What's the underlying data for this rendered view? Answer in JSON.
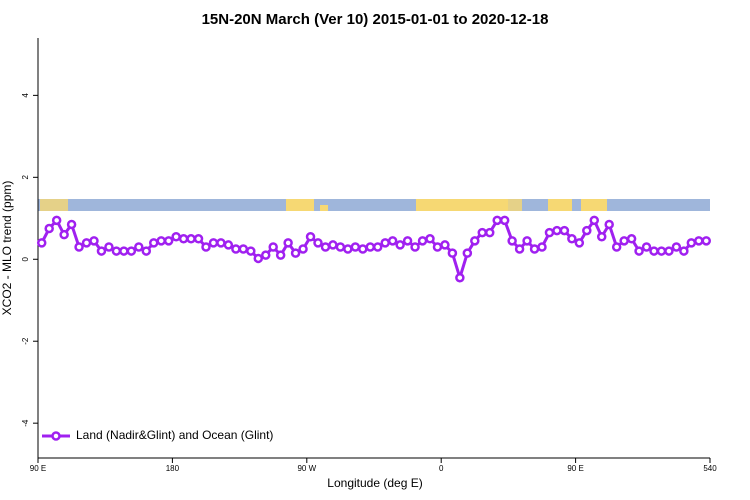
{
  "chart_data": {
    "type": "line",
    "title": "15N-20N March (Ver 10)   2015-01-01 to 2020-12-18",
    "xlabel": "Longitude (deg E)",
    "ylabel": "XCO2 - MLO trend (ppm)",
    "xlim": [
      90,
      540
    ],
    "ylim": [
      -4.85,
      5.4
    ],
    "xticks": [
      {
        "value": 90,
        "label": "90 E"
      },
      180,
      {
        "value": 270,
        "label": "90 W"
      },
      {
        "value": 360,
        "label": "0"
      },
      {
        "value": 450,
        "label": "90 E"
      },
      540
    ],
    "yticks": [
      -4,
      -2,
      0,
      2,
      4
    ],
    "legend": "bottom-left",
    "x": [
      92.5,
      97.5,
      102.5,
      107.5,
      112.5,
      117.5,
      122.5,
      127.5,
      132.5,
      137.5,
      142.5,
      147.5,
      152.5,
      157.5,
      162.5,
      167.5,
      172.5,
      177.5,
      182.5,
      187.5,
      192.5,
      197.5,
      202.5,
      207.5,
      212.5,
      217.5,
      222.5,
      227.5,
      232.5,
      237.5,
      242.5,
      247.5,
      252.5,
      257.5,
      262.5,
      267.5,
      272.5,
      277.5,
      282.5,
      287.5,
      292.5,
      297.5,
      302.5,
      307.5,
      312.5,
      317.5,
      322.5,
      327.5,
      332.5,
      337.5,
      342.5,
      347.5,
      352.5,
      357.5,
      362.5,
      367.5,
      372.5,
      377.5,
      382.5,
      387.5,
      392.5,
      397.5,
      402.5,
      407.5,
      412.5,
      417.5,
      422.5,
      427.5,
      432.5,
      437.5,
      442.5,
      447.5,
      452.5,
      457.5,
      462.5,
      467.5,
      472.5,
      477.5,
      482.5,
      487.5,
      492.5,
      497.5,
      502.5,
      507.5,
      512.5,
      517.5,
      522.5,
      527.5,
      532.5,
      537.5
    ],
    "series": [
      {
        "name": "Land (Nadir&Glint) and Ocean (Glint)",
        "color": "#a020f0",
        "values": [
          0.4,
          0.75,
          0.95,
          0.6,
          0.85,
          0.3,
          0.4,
          0.45,
          0.2,
          0.3,
          0.2,
          0.2,
          0.2,
          0.3,
          0.2,
          0.4,
          0.45,
          0.45,
          0.55,
          0.5,
          0.5,
          0.5,
          0.3,
          0.4,
          0.4,
          0.35,
          0.25,
          0.25,
          0.2,
          0.02,
          0.1,
          0.3,
          0.1,
          0.4,
          0.15,
          0.25,
          0.55,
          0.4,
          0.3,
          0.35,
          0.3,
          0.25,
          0.3,
          0.25,
          0.3,
          0.3,
          0.4,
          0.45,
          0.35,
          0.45,
          0.3,
          0.45,
          0.5,
          0.3,
          0.35,
          0.15,
          -0.45,
          0.15,
          0.45,
          0.65,
          0.65,
          0.95,
          0.95,
          0.45,
          0.25,
          0.45,
          0.25,
          0.3,
          0.65,
          0.7,
          0.7,
          0.5,
          0.4,
          0.7,
          0.95,
          0.55,
          0.85,
          0.3,
          0.45,
          0.5,
          0.2,
          0.3,
          0.2,
          0.2,
          0.2,
          0.3,
          0.2,
          0.4,
          0.45,
          0.45
        ]
      }
    ]
  }
}
